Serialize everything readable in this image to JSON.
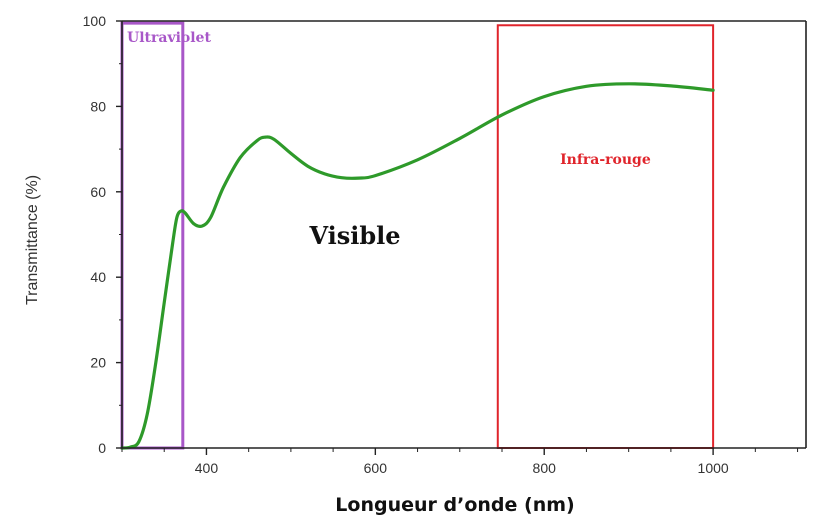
{
  "chart_data": {
    "type": "line",
    "title": "",
    "xlabel": "Longueur d’onde (nm)",
    "ylabel": "Transmittance (%)",
    "xlim": [
      300,
      1110
    ],
    "ylim": [
      0,
      100
    ],
    "x_ticks": [
      400,
      600,
      800,
      1000
    ],
    "y_ticks": [
      0,
      20,
      40,
      60,
      80,
      100
    ],
    "grid": false,
    "series": [
      {
        "color": "#2e9a2a",
        "points": [
          [
            300,
            0
          ],
          [
            310,
            0.2
          ],
          [
            320,
            1.5
          ],
          [
            330,
            8
          ],
          [
            340,
            20
          ],
          [
            350,
            34
          ],
          [
            360,
            48
          ],
          [
            365,
            54
          ],
          [
            370,
            55.5
          ],
          [
            375,
            55
          ],
          [
            385,
            52.5
          ],
          [
            395,
            52
          ],
          [
            405,
            54
          ],
          [
            420,
            61
          ],
          [
            440,
            68
          ],
          [
            460,
            72
          ],
          [
            470,
            72.8
          ],
          [
            480,
            72.3
          ],
          [
            500,
            69
          ],
          [
            520,
            66
          ],
          [
            540,
            64.2
          ],
          [
            560,
            63.3
          ],
          [
            580,
            63.2
          ],
          [
            600,
            63.8
          ],
          [
            650,
            67.5
          ],
          [
            700,
            72.5
          ],
          [
            750,
            78
          ],
          [
            800,
            82.3
          ],
          [
            850,
            84.7
          ],
          [
            900,
            85.3
          ],
          [
            950,
            84.8
          ],
          [
            1000,
            83.8
          ]
        ]
      }
    ],
    "annotations": [
      {
        "label": "Ultraviolet",
        "x_range": [
          300,
          372
        ],
        "y_range": [
          0,
          99.5
        ],
        "color": "#a857c8"
      },
      {
        "label": "Visible",
        "x": 500,
        "y": 50
      },
      {
        "label": "Infra-rouge",
        "x_range": [
          745,
          1000
        ],
        "y_range": [
          0,
          99
        ],
        "color": "#e0242b"
      }
    ]
  }
}
